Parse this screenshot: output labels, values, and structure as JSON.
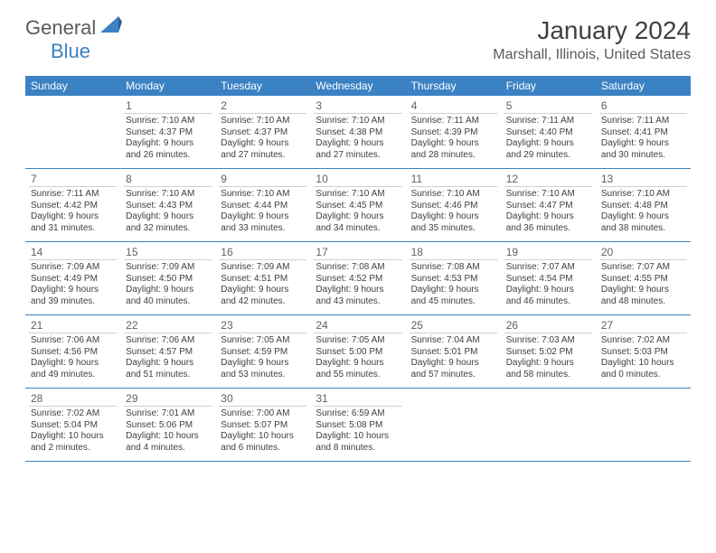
{
  "logo": {
    "word1": "General",
    "word2": "Blue",
    "accent": "#3b82c4",
    "text_color": "#5a5a5a"
  },
  "title": "January 2024",
  "location": "Marshall, Illinois, United States",
  "header_bg": "#3b82c4",
  "days_of_week": [
    "Sunday",
    "Monday",
    "Tuesday",
    "Wednesday",
    "Thursday",
    "Friday",
    "Saturday"
  ],
  "first_weekday_offset": 1,
  "days": [
    {
      "n": 1,
      "sunrise": "7:10 AM",
      "sunset": "4:37 PM",
      "daylight": "9 hours and 26 minutes."
    },
    {
      "n": 2,
      "sunrise": "7:10 AM",
      "sunset": "4:37 PM",
      "daylight": "9 hours and 27 minutes."
    },
    {
      "n": 3,
      "sunrise": "7:10 AM",
      "sunset": "4:38 PM",
      "daylight": "9 hours and 27 minutes."
    },
    {
      "n": 4,
      "sunrise": "7:11 AM",
      "sunset": "4:39 PM",
      "daylight": "9 hours and 28 minutes."
    },
    {
      "n": 5,
      "sunrise": "7:11 AM",
      "sunset": "4:40 PM",
      "daylight": "9 hours and 29 minutes."
    },
    {
      "n": 6,
      "sunrise": "7:11 AM",
      "sunset": "4:41 PM",
      "daylight": "9 hours and 30 minutes."
    },
    {
      "n": 7,
      "sunrise": "7:11 AM",
      "sunset": "4:42 PM",
      "daylight": "9 hours and 31 minutes."
    },
    {
      "n": 8,
      "sunrise": "7:10 AM",
      "sunset": "4:43 PM",
      "daylight": "9 hours and 32 minutes."
    },
    {
      "n": 9,
      "sunrise": "7:10 AM",
      "sunset": "4:44 PM",
      "daylight": "9 hours and 33 minutes."
    },
    {
      "n": 10,
      "sunrise": "7:10 AM",
      "sunset": "4:45 PM",
      "daylight": "9 hours and 34 minutes."
    },
    {
      "n": 11,
      "sunrise": "7:10 AM",
      "sunset": "4:46 PM",
      "daylight": "9 hours and 35 minutes."
    },
    {
      "n": 12,
      "sunrise": "7:10 AM",
      "sunset": "4:47 PM",
      "daylight": "9 hours and 36 minutes."
    },
    {
      "n": 13,
      "sunrise": "7:10 AM",
      "sunset": "4:48 PM",
      "daylight": "9 hours and 38 minutes."
    },
    {
      "n": 14,
      "sunrise": "7:09 AM",
      "sunset": "4:49 PM",
      "daylight": "9 hours and 39 minutes."
    },
    {
      "n": 15,
      "sunrise": "7:09 AM",
      "sunset": "4:50 PM",
      "daylight": "9 hours and 40 minutes."
    },
    {
      "n": 16,
      "sunrise": "7:09 AM",
      "sunset": "4:51 PM",
      "daylight": "9 hours and 42 minutes."
    },
    {
      "n": 17,
      "sunrise": "7:08 AM",
      "sunset": "4:52 PM",
      "daylight": "9 hours and 43 minutes."
    },
    {
      "n": 18,
      "sunrise": "7:08 AM",
      "sunset": "4:53 PM",
      "daylight": "9 hours and 45 minutes."
    },
    {
      "n": 19,
      "sunrise": "7:07 AM",
      "sunset": "4:54 PM",
      "daylight": "9 hours and 46 minutes."
    },
    {
      "n": 20,
      "sunrise": "7:07 AM",
      "sunset": "4:55 PM",
      "daylight": "9 hours and 48 minutes."
    },
    {
      "n": 21,
      "sunrise": "7:06 AM",
      "sunset": "4:56 PM",
      "daylight": "9 hours and 49 minutes."
    },
    {
      "n": 22,
      "sunrise": "7:06 AM",
      "sunset": "4:57 PM",
      "daylight": "9 hours and 51 minutes."
    },
    {
      "n": 23,
      "sunrise": "7:05 AM",
      "sunset": "4:59 PM",
      "daylight": "9 hours and 53 minutes."
    },
    {
      "n": 24,
      "sunrise": "7:05 AM",
      "sunset": "5:00 PM",
      "daylight": "9 hours and 55 minutes."
    },
    {
      "n": 25,
      "sunrise": "7:04 AM",
      "sunset": "5:01 PM",
      "daylight": "9 hours and 57 minutes."
    },
    {
      "n": 26,
      "sunrise": "7:03 AM",
      "sunset": "5:02 PM",
      "daylight": "9 hours and 58 minutes."
    },
    {
      "n": 27,
      "sunrise": "7:02 AM",
      "sunset": "5:03 PM",
      "daylight": "10 hours and 0 minutes."
    },
    {
      "n": 28,
      "sunrise": "7:02 AM",
      "sunset": "5:04 PM",
      "daylight": "10 hours and 2 minutes."
    },
    {
      "n": 29,
      "sunrise": "7:01 AM",
      "sunset": "5:06 PM",
      "daylight": "10 hours and 4 minutes."
    },
    {
      "n": 30,
      "sunrise": "7:00 AM",
      "sunset": "5:07 PM",
      "daylight": "10 hours and 6 minutes."
    },
    {
      "n": 31,
      "sunrise": "6:59 AM",
      "sunset": "5:08 PM",
      "daylight": "10 hours and 8 minutes."
    }
  ],
  "labels": {
    "sunrise": "Sunrise:",
    "sunset": "Sunset:",
    "daylight": "Daylight:"
  }
}
